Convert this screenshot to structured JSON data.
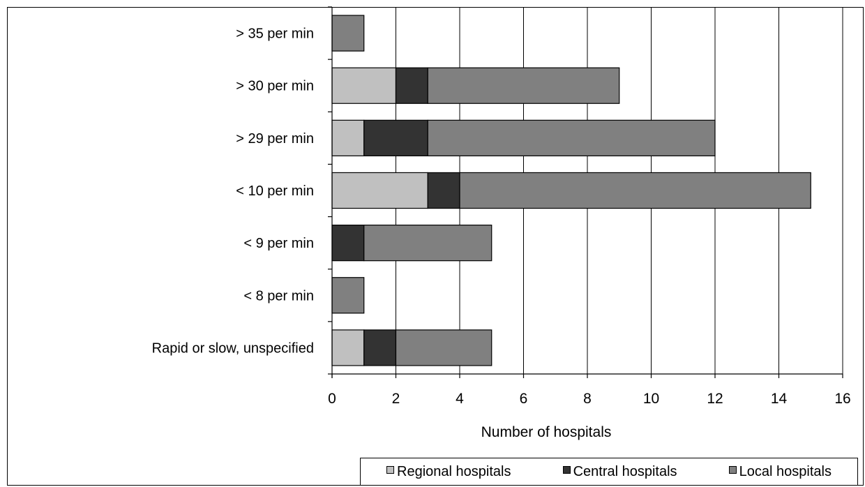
{
  "chart_data": {
    "type": "bar",
    "orientation": "horizontal",
    "stacked": true,
    "categories": [
      "> 35 per min",
      "> 30 per min",
      "> 29 per min",
      "< 10 per min",
      "< 9 per min",
      "< 8 per min",
      "Rapid or slow, unspecified"
    ],
    "series": [
      {
        "name": "Regional hospitals",
        "color": "#c0c0c0",
        "values": [
          0,
          2,
          1,
          3,
          0,
          0,
          1
        ]
      },
      {
        "name": "Central hospitals",
        "color": "#333333",
        "values": [
          0,
          1,
          2,
          1,
          1,
          0,
          1
        ]
      },
      {
        "name": "Local hospitals",
        "color": "#808080",
        "values": [
          1,
          6,
          9,
          11,
          4,
          1,
          3
        ]
      }
    ],
    "xlabel": "Number of hospitals",
    "xlim": [
      0,
      16
    ],
    "xticks": [
      0,
      2,
      4,
      6,
      8,
      10,
      12,
      14,
      16
    ],
    "grid": "vertical",
    "legend_position": "bottom-right"
  }
}
